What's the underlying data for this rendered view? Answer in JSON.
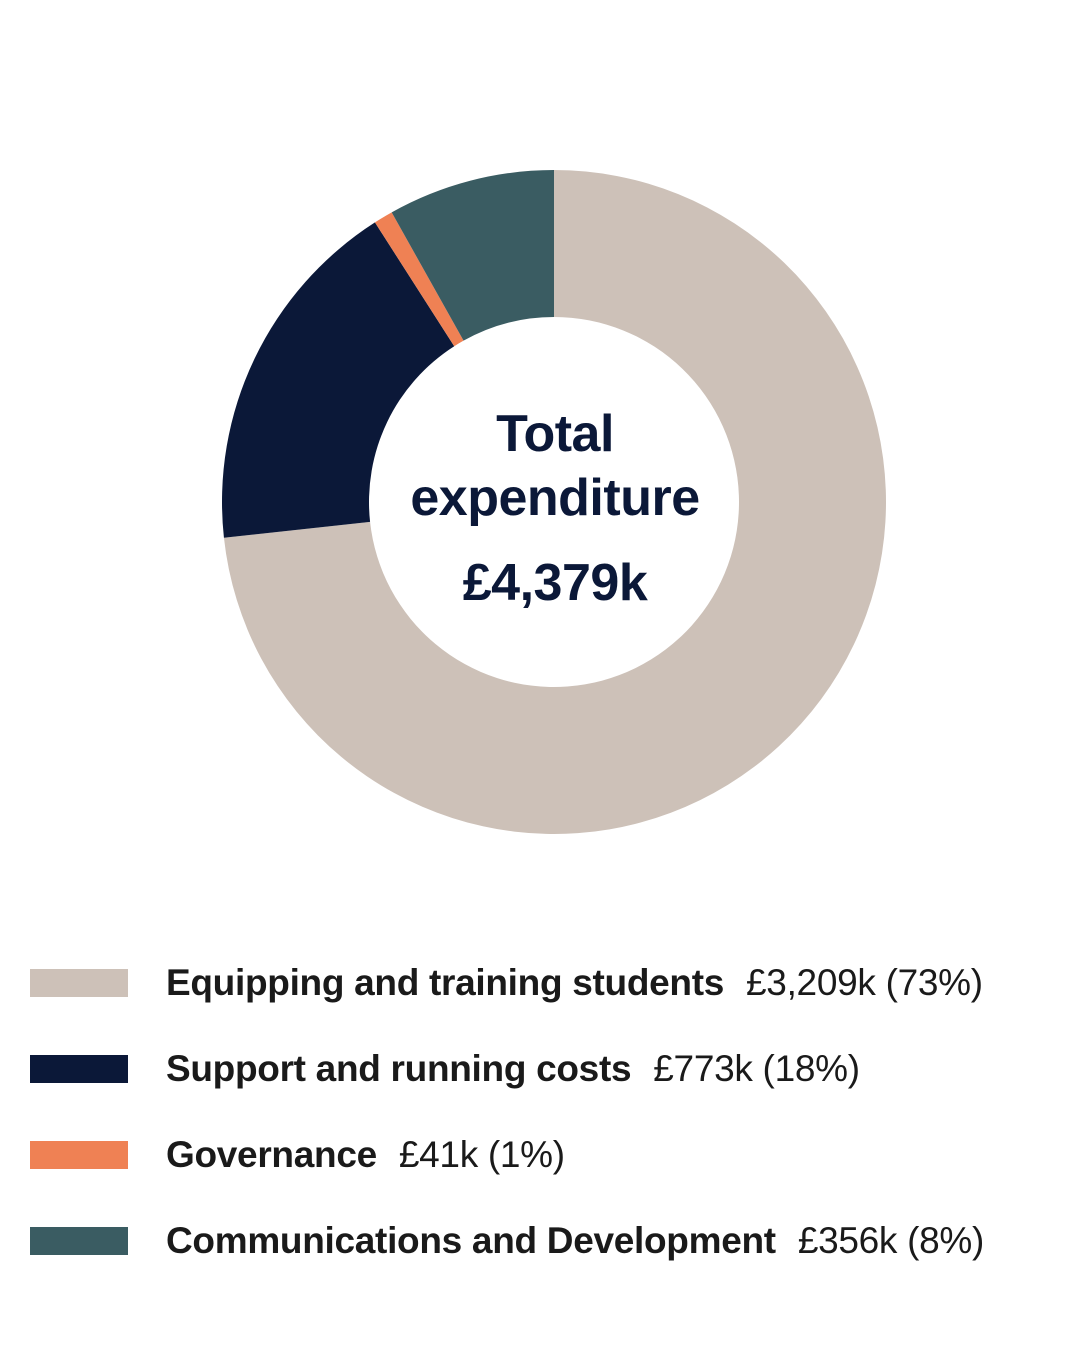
{
  "chart_data": {
    "type": "pie",
    "variant": "donut",
    "center_label": {
      "line1": "Total",
      "line2": "expenditure",
      "total": "£4,379k"
    },
    "categories": [
      "Equipping and training students",
      "Support and running costs",
      "Governance",
      "Communications and Development"
    ],
    "values": [
      3209,
      773,
      41,
      356
    ],
    "value_labels": [
      "£3,209k (73%)",
      "£773k (18%)",
      "£41k (1%)",
      "£356k (8%)"
    ],
    "colors": [
      "#cdc1b8",
      "#0b1838",
      "#ef8154",
      "#3a5c62"
    ],
    "start_angle_deg": 0,
    "direction": "clockwise",
    "legend_position": "bottom"
  },
  "legend": {
    "items": [
      {
        "name": "Equipping and training students",
        "value": "£3,209k (73%)"
      },
      {
        "name": "Support and running costs",
        "value": "£773k (18%)"
      },
      {
        "name": "Governance",
        "value": "£41k (1%)"
      },
      {
        "name": "Communications and Development",
        "value": "£356k (8%)"
      }
    ]
  }
}
